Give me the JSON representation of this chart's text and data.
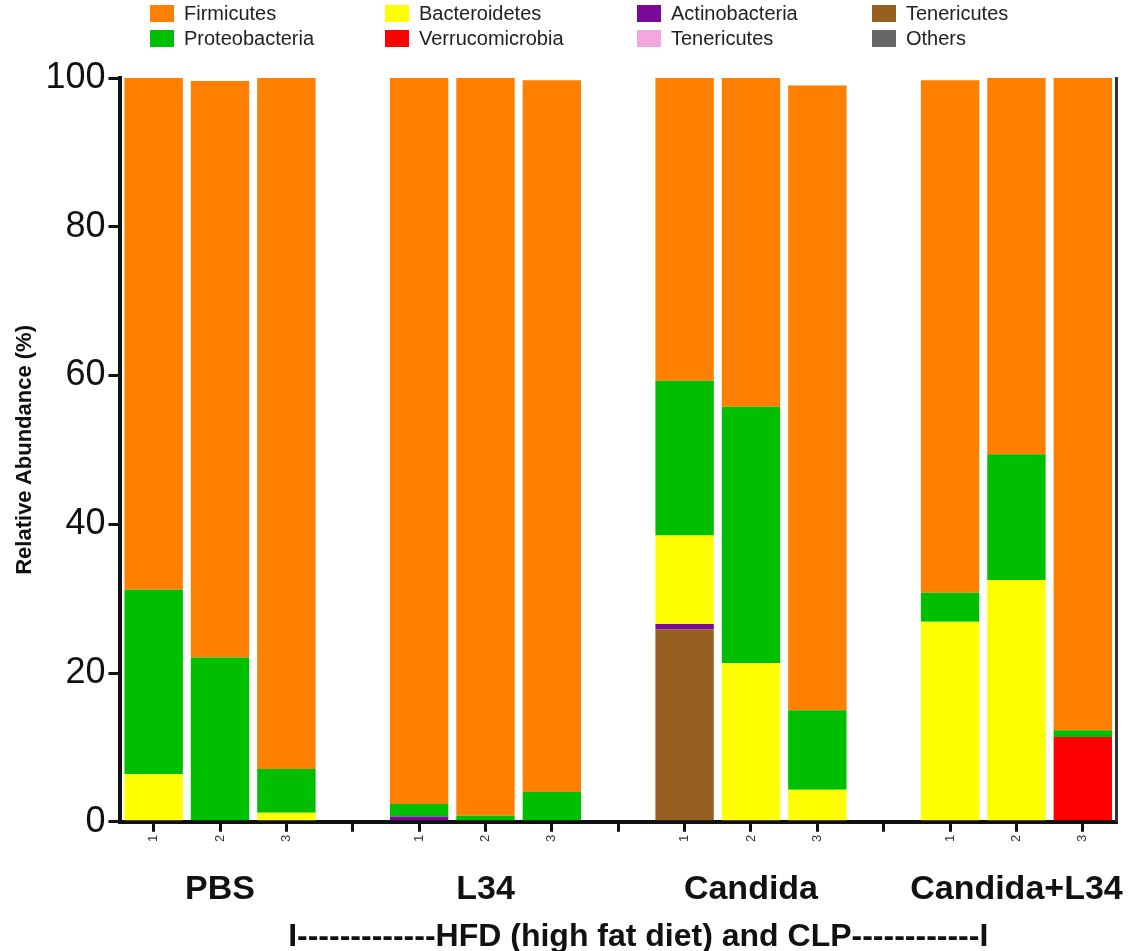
{
  "chart_data": {
    "type": "bar",
    "stacked": true,
    "ylabel": "Relative Abundance (%)",
    "legend": "top",
    "grid": false,
    "categories": [
      "1",
      "2",
      "3",
      null,
      "1",
      "2",
      "3",
      null,
      "1",
      "2",
      "3",
      null,
      "1",
      "2",
      "3"
    ],
    "ylim": [
      0,
      100
    ],
    "yticks": [
      0,
      20,
      40,
      60,
      80,
      100
    ],
    "annotations": [
      "PBS",
      "L34",
      "Candida",
      "Candida+L34",
      "I-------------HFD (high fat diet) and CLP------------I"
    ],
    "series": [
      {
        "name": "Others",
        "color": "#666666",
        "values": [
          0,
          0,
          0,
          null,
          0,
          0,
          0,
          null,
          0,
          0,
          0,
          null,
          0,
          0,
          0
        ]
      },
      {
        "name": "Tenericutes",
        "color": "#956020",
        "values": [
          0,
          0,
          0,
          null,
          0,
          0,
          0,
          null,
          25.9,
          0,
          0,
          null,
          0,
          0,
          0
        ]
      },
      {
        "name": "Tenericutes",
        "color": "#f4a6e0",
        "values": [
          0,
          0,
          0,
          null,
          0,
          0,
          0,
          null,
          0,
          0,
          0,
          null,
          null,
          0,
          0
        ]
      },
      {
        "name": "Actinobacteria",
        "color": "#7a0a9a",
        "values": [
          0,
          0,
          0,
          null,
          0.7,
          0,
          0,
          null,
          0.7,
          0,
          0,
          null,
          0,
          0,
          0
        ]
      },
      {
        "name": "Verrucomicrobia",
        "color": "#ff0000",
        "values": [
          0,
          0,
          0,
          null,
          0,
          0,
          0,
          null,
          0,
          0,
          0,
          null,
          0,
          0,
          11.4
        ]
      },
      {
        "name": "Bacteroidetes",
        "color": "#ffff00",
        "values": [
          6.4,
          null,
          1.2,
          null,
          0,
          0,
          null,
          null,
          11.9,
          21.3,
          4.3,
          null,
          26.9,
          32.5,
          0
        ]
      },
      {
        "name": "Proteobacteria",
        "color": "#00bf00",
        "values": [
          24.8,
          22.1,
          5.9,
          null,
          1.7,
          0.8,
          4,
          null,
          20.8,
          34.5,
          10.7,
          null,
          3.9,
          16.9,
          0.9
        ]
      },
      {
        "name": "Firmicutes",
        "color": "#ff8000",
        "values": [
          68.8,
          77.5,
          92.9,
          null,
          97.6,
          99.2,
          95.7,
          null,
          40.7,
          44.2,
          84,
          null,
          68.9,
          50.6,
          87.7
        ]
      }
    ]
  }
}
